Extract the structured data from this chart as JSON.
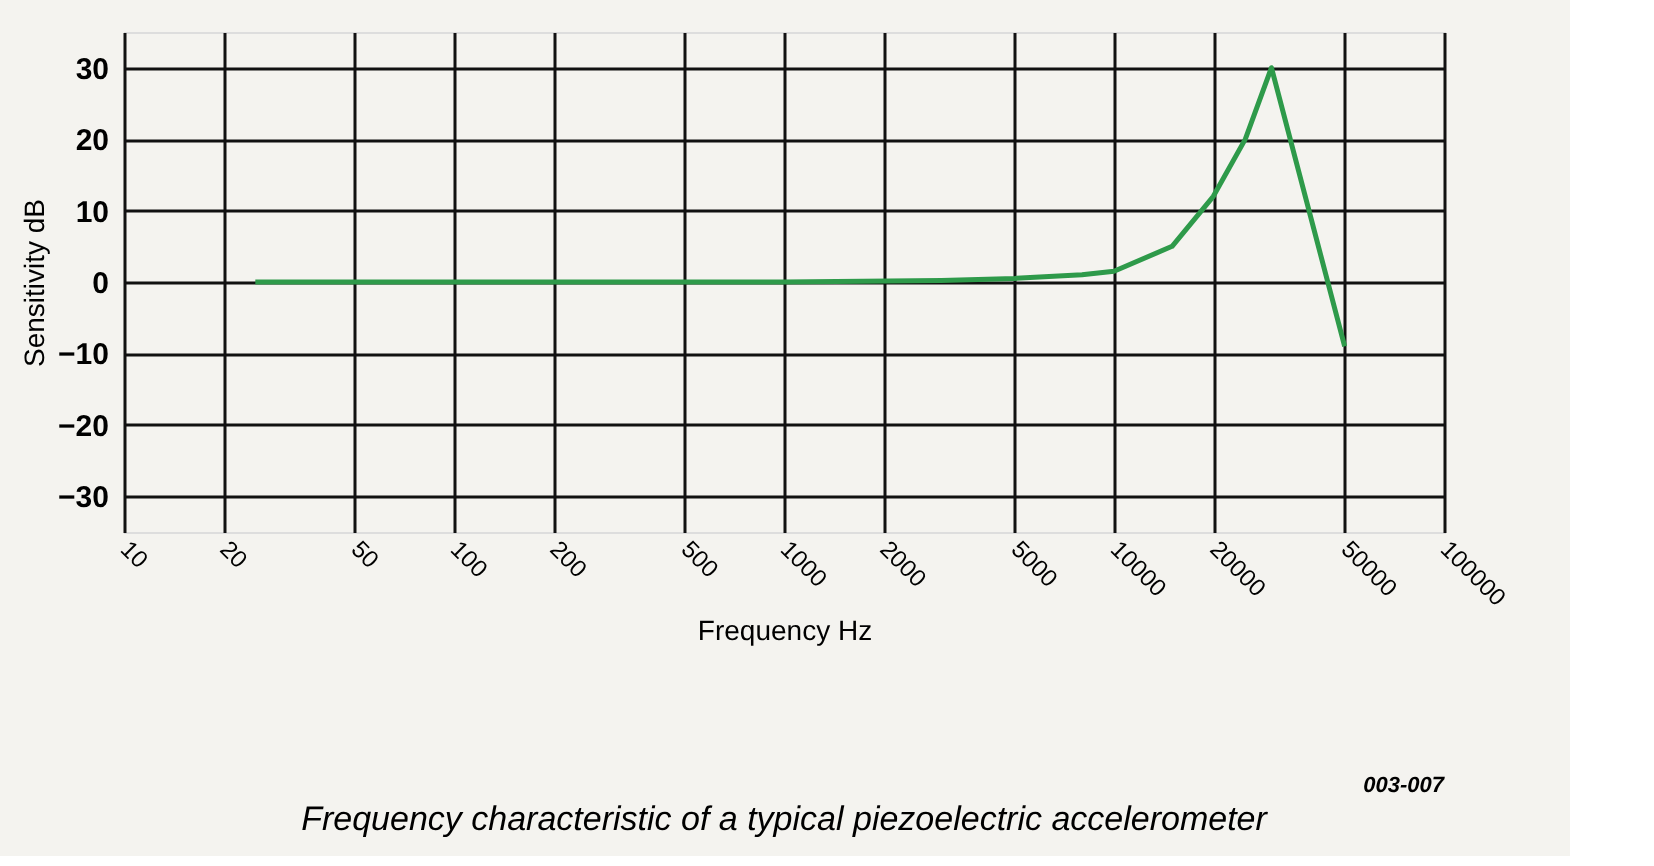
{
  "chart_data": {
    "type": "line",
    "title": "Frequency characteristic of a typical piezoelectric accelerometer",
    "xlabel": "Frequency Hz",
    "ylabel": "Sensitivity dB",
    "annotations": [
      "003-007"
    ],
    "log": "x",
    "grid": true,
    "marker": "none",
    "line_style": "solid",
    "xlim": [
      10,
      100000
    ],
    "xticks": [
      10,
      20,
      50,
      100,
      200,
      500,
      1000,
      2000,
      5000,
      10000,
      20000,
      50000,
      100000
    ],
    "ylim": [
      -35,
      35
    ],
    "yticks": [
      -30,
      -20,
      -10,
      0,
      10,
      20,
      30
    ],
    "series": [
      {
        "color": "#2e9a4a",
        "x": [
          25,
          100,
          1000,
          3000,
          5000,
          8000,
          10000,
          15000,
          20000,
          25000,
          30000,
          50000
        ],
        "values": [
          0,
          0,
          0,
          0.2,
          0.5,
          1,
          1.5,
          5,
          12,
          20,
          30,
          -9
        ]
      }
    ]
  }
}
